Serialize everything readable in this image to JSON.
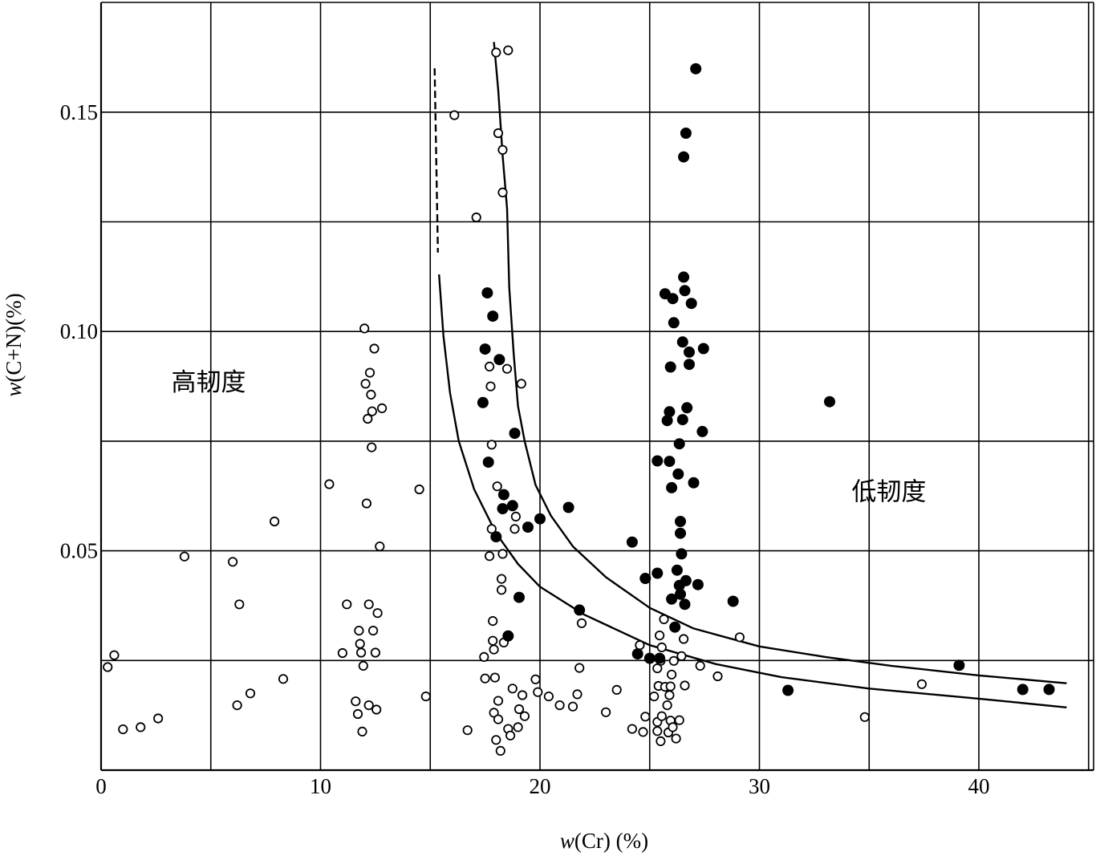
{
  "chart_data": {
    "type": "scatter",
    "title": "",
    "xlabel_var": "w",
    "xlabel_rest": "(Cr) (%)",
    "ylabel_var": "w",
    "ylabel_rest": "(C+N)(%)",
    "xlim": [
      0,
      45
    ],
    "ylim": [
      0,
      0.17
    ],
    "x_ticks": [
      {
        "value": 0,
        "label": "0"
      },
      {
        "value": 10,
        "label": "10"
      },
      {
        "value": 20,
        "label": "20"
      },
      {
        "value": 30,
        "label": "30"
      },
      {
        "value": 40,
        "label": "40"
      }
    ],
    "y_ticks": [
      {
        "value": 0.05,
        "label": "0.05"
      },
      {
        "value": 0.1,
        "label": "0.10"
      },
      {
        "value": 0.15,
        "label": "0.15"
      }
    ],
    "grid_x": [
      5,
      10,
      15,
      20,
      25,
      30,
      35,
      40,
      45
    ],
    "grid_y": [
      0.025,
      0.05,
      0.075,
      0.1,
      0.125,
      0.15
    ],
    "grid": true,
    "legend": "none",
    "annotations": [
      {
        "text": "高韧度",
        "x": 4.9,
        "y": 0.0865
      },
      {
        "text": "低韧度",
        "x": 35.9,
        "y": 0.0615
      }
    ],
    "series": [
      {
        "marker": "open-circle",
        "points": [
          [
            0.3,
            0.0235
          ],
          [
            0.6,
            0.0262
          ],
          [
            1.0,
            0.0093
          ],
          [
            1.8,
            0.0098
          ],
          [
            2.6,
            0.0118
          ],
          [
            3.8,
            0.0487
          ],
          [
            6.0,
            0.0475
          ],
          [
            6.2,
            0.0148
          ],
          [
            6.3,
            0.0378
          ],
          [
            6.8,
            0.0175
          ],
          [
            7.9,
            0.0567
          ],
          [
            8.3,
            0.0208
          ],
          [
            10.4,
            0.0652
          ],
          [
            11.0,
            0.0267
          ],
          [
            11.2,
            0.0378
          ],
          [
            11.6,
            0.0157
          ],
          [
            11.7,
            0.0128
          ],
          [
            11.75,
            0.0318
          ],
          [
            11.8,
            0.0288
          ],
          [
            11.85,
            0.0268
          ],
          [
            11.9,
            0.0088
          ],
          [
            11.95,
            0.0238
          ],
          [
            12.0,
            0.1007
          ],
          [
            12.05,
            0.0881
          ],
          [
            12.1,
            0.0608
          ],
          [
            12.15,
            0.0801
          ],
          [
            12.2,
            0.0148
          ],
          [
            12.25,
            0.0906
          ],
          [
            12.3,
            0.0856
          ],
          [
            12.33,
            0.0736
          ],
          [
            12.35,
            0.0818
          ],
          [
            12.4,
            0.0318
          ],
          [
            12.45,
            0.0961
          ],
          [
            12.5,
            0.0268
          ],
          [
            12.55,
            0.0138
          ],
          [
            12.6,
            0.0358
          ],
          [
            12.7,
            0.051
          ],
          [
            12.8,
            0.0825
          ],
          [
            12.2,
            0.0378
          ],
          [
            14.5,
            0.064
          ],
          [
            14.8,
            0.0168
          ],
          [
            16.1,
            0.1493
          ],
          [
            16.7,
            0.0091
          ],
          [
            17.1,
            0.126
          ],
          [
            17.45,
            0.0258
          ],
          [
            17.5,
            0.0209
          ],
          [
            17.7,
            0.092
          ],
          [
            17.75,
            0.0875
          ],
          [
            17.8,
            0.0742
          ],
          [
            17.8,
            0.055
          ],
          [
            17.7,
            0.0488
          ],
          [
            17.85,
            0.034
          ],
          [
            17.85,
            0.0295
          ],
          [
            17.9,
            0.0275
          ],
          [
            17.95,
            0.0211
          ],
          [
            17.9,
            0.0131
          ],
          [
            18.0,
            0.0069
          ],
          [
            18.0,
            0.1636
          ],
          [
            18.05,
            0.0647
          ],
          [
            18.1,
            0.0116
          ],
          [
            18.1,
            0.1452
          ],
          [
            18.1,
            0.0158
          ],
          [
            18.2,
            0.0044
          ],
          [
            18.25,
            0.0436
          ],
          [
            18.25,
            0.0411
          ],
          [
            18.3,
            0.1414
          ],
          [
            18.3,
            0.1317
          ],
          [
            18.3,
            0.0493
          ],
          [
            18.35,
            0.0291
          ],
          [
            18.5,
            0.0915
          ],
          [
            18.55,
            0.1641
          ],
          [
            18.55,
            0.0094
          ],
          [
            18.65,
            0.0079
          ],
          [
            18.75,
            0.0186
          ],
          [
            18.85,
            0.055
          ],
          [
            18.9,
            0.0578
          ],
          [
            19.0,
            0.0098
          ],
          [
            19.05,
            0.0139
          ],
          [
            19.15,
            0.0881
          ],
          [
            19.2,
            0.0171
          ],
          [
            19.3,
            0.0123
          ],
          [
            19.8,
            0.0207
          ],
          [
            19.9,
            0.0178
          ],
          [
            20.4,
            0.0168
          ],
          [
            20.9,
            0.0148
          ],
          [
            21.5,
            0.0145
          ],
          [
            21.7,
            0.0173
          ],
          [
            21.8,
            0.0233
          ],
          [
            21.9,
            0.0335
          ],
          [
            23.0,
            0.0132
          ],
          [
            23.5,
            0.0183
          ],
          [
            24.2,
            0.0094
          ],
          [
            24.55,
            0.0285
          ],
          [
            24.7,
            0.0087
          ],
          [
            24.8,
            0.0122
          ],
          [
            25.2,
            0.0168
          ],
          [
            25.35,
            0.011
          ],
          [
            25.35,
            0.0089
          ],
          [
            25.35,
            0.0232
          ],
          [
            25.4,
            0.0192
          ],
          [
            25.45,
            0.0307
          ],
          [
            25.5,
            0.0066
          ],
          [
            25.5,
            0.0249
          ],
          [
            25.55,
            0.028
          ],
          [
            25.55,
            0.0123
          ],
          [
            25.65,
            0.0344
          ],
          [
            25.7,
            0.019
          ],
          [
            25.8,
            0.0148
          ],
          [
            25.85,
            0.0086
          ],
          [
            25.9,
            0.0171
          ],
          [
            25.95,
            0.0113
          ],
          [
            25.95,
            0.0191
          ],
          [
            26.0,
            0.0218
          ],
          [
            26.05,
            0.0098
          ],
          [
            26.1,
            0.0249
          ],
          [
            26.2,
            0.0072
          ],
          [
            26.35,
            0.0114
          ],
          [
            26.45,
            0.026
          ],
          [
            26.55,
            0.0299
          ],
          [
            26.6,
            0.0193
          ],
          [
            27.3,
            0.0238
          ],
          [
            28.1,
            0.0214
          ],
          [
            29.1,
            0.0303
          ],
          [
            34.8,
            0.0121
          ],
          [
            37.4,
            0.0196
          ]
        ]
      },
      {
        "marker": "filled-circle",
        "points": [
          [
            17.4,
            0.0838
          ],
          [
            17.5,
            0.096
          ],
          [
            17.6,
            0.1088
          ],
          [
            17.65,
            0.0702
          ],
          [
            17.85,
            0.1035
          ],
          [
            18.0,
            0.0532
          ],
          [
            18.15,
            0.0936
          ],
          [
            18.3,
            0.0596
          ],
          [
            18.35,
            0.0628
          ],
          [
            18.55,
            0.0306
          ],
          [
            18.75,
            0.0603
          ],
          [
            18.85,
            0.0768
          ],
          [
            19.05,
            0.0394
          ],
          [
            19.45,
            0.0554
          ],
          [
            20.0,
            0.0573
          ],
          [
            21.3,
            0.0599
          ],
          [
            21.8,
            0.0365
          ],
          [
            24.2,
            0.052
          ],
          [
            24.45,
            0.0265
          ],
          [
            24.8,
            0.0437
          ],
          [
            25.0,
            0.0255
          ],
          [
            25.35,
            0.0449
          ],
          [
            25.35,
            0.0705
          ],
          [
            25.45,
            0.0255
          ],
          [
            25.7,
            0.1086
          ],
          [
            25.8,
            0.0797
          ],
          [
            25.9,
            0.0704
          ],
          [
            25.9,
            0.0817
          ],
          [
            25.95,
            0.0919
          ],
          [
            26.0,
            0.0644
          ],
          [
            26.0,
            0.039
          ],
          [
            26.05,
            0.1075
          ],
          [
            26.1,
            0.102
          ],
          [
            26.15,
            0.0326
          ],
          [
            26.25,
            0.0456
          ],
          [
            26.3,
            0.0675
          ],
          [
            26.35,
            0.0421
          ],
          [
            26.35,
            0.0744
          ],
          [
            26.4,
            0.0401
          ],
          [
            26.4,
            0.0567
          ],
          [
            26.4,
            0.054
          ],
          [
            26.45,
            0.0493
          ],
          [
            26.5,
            0.0976
          ],
          [
            26.5,
            0.0799
          ],
          [
            26.55,
            0.1398
          ],
          [
            26.55,
            0.1124
          ],
          [
            26.6,
            0.1093
          ],
          [
            26.6,
            0.0378
          ],
          [
            26.65,
            0.1452
          ],
          [
            26.65,
            0.0432
          ],
          [
            26.7,
            0.0826
          ],
          [
            26.8,
            0.0953
          ],
          [
            26.8,
            0.0925
          ],
          [
            26.9,
            0.1064
          ],
          [
            27.0,
            0.0655
          ],
          [
            27.1,
            0.1599
          ],
          [
            27.2,
            0.0423
          ],
          [
            27.4,
            0.0772
          ],
          [
            27.45,
            0.0961
          ],
          [
            28.8,
            0.0385
          ],
          [
            31.3,
            0.0182
          ],
          [
            33.2,
            0.084
          ],
          [
            39.1,
            0.0239
          ],
          [
            42.0,
            0.0184
          ],
          [
            43.2,
            0.0184
          ]
        ]
      }
    ],
    "curves": [
      {
        "style": "solid",
        "points": [
          [
            15.4,
            0.113
          ],
          [
            15.6,
            0.099
          ],
          [
            15.9,
            0.086
          ],
          [
            16.3,
            0.075
          ],
          [
            17.0,
            0.064
          ],
          [
            18.0,
            0.054
          ],
          [
            19.0,
            0.047
          ],
          [
            20.0,
            0.0418
          ],
          [
            22.0,
            0.0355
          ],
          [
            25.0,
            0.0285
          ],
          [
            28.0,
            0.0242
          ],
          [
            31.0,
            0.0212
          ],
          [
            35.0,
            0.0186
          ],
          [
            40.0,
            0.0163
          ],
          [
            44.0,
            0.0143
          ]
        ]
      },
      {
        "style": "dashed",
        "points": [
          [
            15.2,
            0.16
          ],
          [
            15.35,
            0.118
          ]
        ]
      },
      {
        "style": "solid",
        "points": [
          [
            17.9,
            0.166
          ],
          [
            18.1,
            0.155
          ],
          [
            18.3,
            0.14
          ],
          [
            18.5,
            0.128
          ],
          [
            18.6,
            0.11
          ],
          [
            18.8,
            0.095
          ],
          [
            19.0,
            0.083
          ],
          [
            19.3,
            0.075
          ],
          [
            19.8,
            0.065
          ],
          [
            20.5,
            0.058
          ],
          [
            21.5,
            0.051
          ],
          [
            23.0,
            0.044
          ],
          [
            25.0,
            0.037
          ],
          [
            27.0,
            0.0323
          ],
          [
            30.0,
            0.0282
          ],
          [
            33.0,
            0.0258
          ],
          [
            36.0,
            0.0238
          ],
          [
            40.0,
            0.0216
          ],
          [
            44.0,
            0.0198
          ]
        ]
      }
    ]
  }
}
